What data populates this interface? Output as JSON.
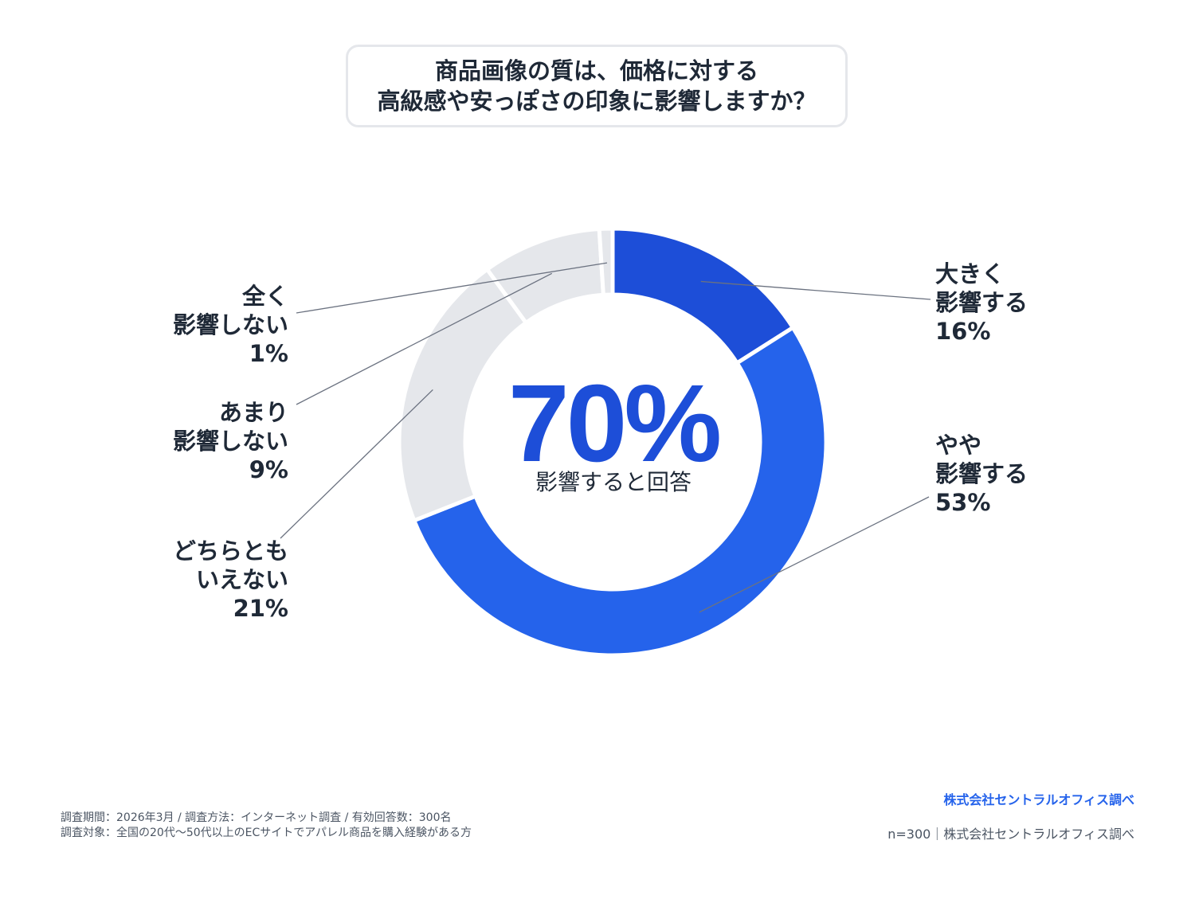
{
  "title": {
    "line1": "商品画像の質は、価格に対する",
    "line2": "高級感や安っぽさの印象に影響しますか？"
  },
  "center": {
    "value": "70%",
    "label": "影響すると回答"
  },
  "chart_data": {
    "type": "pie",
    "donut": true,
    "categories": [
      "大きく影響する",
      "やや影響する",
      "どちらともいえない",
      "あまり影響しない",
      "全く影響しない"
    ],
    "values": [
      16,
      53,
      21,
      9,
      1
    ],
    "unit": "%",
    "colors": [
      "#1d4ed8",
      "#2563eb",
      "#e5e7eb",
      "#e5e7eb",
      "#e5e7eb"
    ],
    "labels": [
      {
        "lines": [
          "大きく",
          "影響する"
        ],
        "pct": "16%",
        "side": "right"
      },
      {
        "lines": [
          "やや",
          "影響する"
        ],
        "pct": "53%",
        "side": "right"
      },
      {
        "lines": [
          "どちらとも",
          "いえない"
        ],
        "pct": "21%",
        "side": "left"
      },
      {
        "lines": [
          "あまり",
          "影響しない"
        ],
        "pct": "9%",
        "side": "left"
      },
      {
        "lines": [
          "全く",
          "影響しない"
        ],
        "pct": "1%",
        "side": "left"
      }
    ]
  },
  "footer": {
    "note_line1": "調査期間：2026年3月 / 調査方法：インターネット調査 / 有効回答数：300名",
    "note_line2": "調査対象：全国の20代〜50代以上のECサイトでアパレル商品を購入経験がある方",
    "credit_primary": "株式会社セントラルオフィス調べ",
    "credit_secondary": "n=300｜株式会社セントラルオフィス調べ"
  }
}
